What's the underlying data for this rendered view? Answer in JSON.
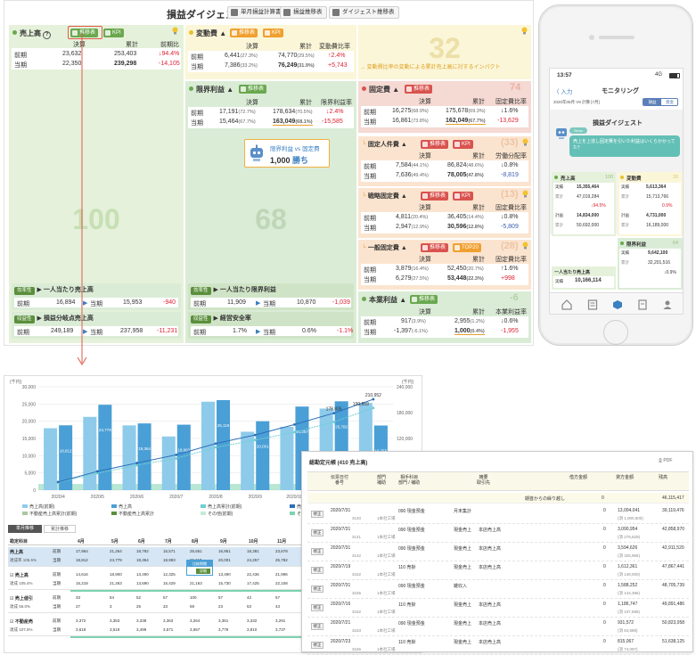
{
  "header": {
    "title": "損益ダイジェスト",
    "buttons": [
      "単月損益計算書",
      "損益推移表",
      "ダイジェスト推移表"
    ]
  },
  "sales": {
    "title": "売上高",
    "tag1": "推移表",
    "tag2": "KPI",
    "cols": [
      "決算",
      "累計",
      "前期比"
    ],
    "rows": [
      {
        "label": "前期",
        "v1": "23,632",
        "v2": "253,403",
        "v3": "94.4%"
      },
      {
        "label": "当期",
        "v1": "22,350",
        "v2": "239,298",
        "v3": "-14,105"
      }
    ],
    "big": "100",
    "kpi1": {
      "badge": "効率性",
      "title": "一人当たり売上高",
      "prev_label": "前期",
      "prev": "16,894",
      "cur_label": "当期",
      "cur": "15,953",
      "diff": "-940"
    },
    "kpi2": {
      "badge": "収益性",
      "title": "損益分岐点売上高",
      "prev_label": "前期",
      "prev": "249,189",
      "cur_label": "当期",
      "cur": "237,958",
      "diff": "-11,231"
    }
  },
  "variable": {
    "title": "変動費",
    "tag1": "推移表",
    "tag2": "KPI",
    "cols": [
      "決算",
      "累計",
      "変動費比率"
    ],
    "rows": [
      {
        "label": "前期",
        "v1": "6,441",
        "r1": "(27.3%)",
        "v2": "74,770",
        "r2": "(29.5%)",
        "v3": "2.4%"
      },
      {
        "label": "当期",
        "v1": "7,386",
        "r1": "(33.2%)",
        "v2": "76,249",
        "r2": "(31.9%)",
        "v3": "+5,743"
      }
    ],
    "big": "32",
    "note": "変動費比率の変動による累計売上高に対するインパクト"
  },
  "marginal": {
    "title": "限界利益",
    "tag1": "推移表",
    "cols": [
      "決算",
      "累計",
      "限界利益率"
    ],
    "rows": [
      {
        "label": "前期",
        "v1": "17,191",
        "r1": "(72.7%)",
        "v2": "178,634",
        "r2": "(70.5%)",
        "v3": "2.4%"
      },
      {
        "label": "当期",
        "v1": "15,464",
        "r1": "(67.7%)",
        "v2": "163,049",
        "r2": "(68.1%)",
        "v3": "-15,585"
      }
    ],
    "big": "68",
    "compare_title": "限界利益 vs 固定費",
    "compare_value": "1,000",
    "compare_unit": "勝ち",
    "kpi1": {
      "badge": "効率性",
      "title": "一人当たり限界利益",
      "prev_label": "前期",
      "prev": "11,909",
      "cur_label": "当期",
      "cur": "10,870",
      "diff": "-1,039"
    },
    "kpi2": {
      "badge": "収益性",
      "title": "経営安全率",
      "prev_label": "前期",
      "prev": "1.7%",
      "cur_label": "当期",
      "cur": "0.6%",
      "diff": "-1.1%"
    }
  },
  "fixed": {
    "title": "固定費",
    "tag1": "推移表",
    "cols": [
      "決算",
      "累計",
      "固定費比率"
    ],
    "rows": [
      {
        "label": "前期",
        "v1": "16,275",
        "r1": "(68.9%)",
        "v2": "175,678",
        "r2": "(69.3%)",
        "v3": "1.6%"
      },
      {
        "label": "当期",
        "v1": "16,861",
        "r1": "(73.8%)",
        "v2": "162,049",
        "r2": "(67.7%)",
        "v3": "-13,629"
      }
    ],
    "big": "74",
    "sub": [
      {
        "title": "固定人件費",
        "tag1": "推移表",
        "tag2": "KPI",
        "num": "(33)",
        "cols": [
          "決算",
          "累計",
          "労働分配率"
        ],
        "rows": [
          {
            "label": "前期",
            "v1": "7,584",
            "r1": "(44.1%)",
            "v2": "86,824",
            "r2": "(48.6%)",
            "v3": "0.8%"
          },
          {
            "label": "当期",
            "v1": "7,636",
            "r1": "(49.4%)",
            "v2": "78,005",
            "r2": "(47.8%)",
            "v3": "-8,819"
          }
        ]
      },
      {
        "title": "戦略固定費",
        "tag1": "推移表",
        "tag2": "KPI",
        "num": "(13)",
        "cols": [
          "決算",
          "累計",
          "固定費比率"
        ],
        "rows": [
          {
            "label": "前期",
            "v1": "4,811",
            "r1": "(20.4%)",
            "v2": "36,405",
            "r2": "(14.4%)",
            "v3": "0.8%"
          },
          {
            "label": "当期",
            "v1": "2,947",
            "r1": "(12.9%)",
            "v2": "30,596",
            "r2": "(12.8%)",
            "v3": "-5,809"
          }
        ]
      },
      {
        "title": "一般固定費",
        "tag1": "推移表",
        "tag2": "TOP20",
        "num": "(28)",
        "cols": [
          "決算",
          "累計",
          "固定費比率"
        ],
        "rows": [
          {
            "label": "前期",
            "v1": "3,879",
            "r1": "(16.4%)",
            "v2": "52,450",
            "r2": "(20.7%)",
            "v3": "1.6%"
          },
          {
            "label": "当期",
            "v1": "6,279",
            "r1": "(27.5%)",
            "v2": "53,448",
            "r2": "(22.3%)",
            "v3": "+998"
          }
        ]
      }
    ]
  },
  "operating": {
    "title": "本業利益",
    "tag1": "推移表",
    "num": "-6",
    "cols": [
      "決算",
      "累計",
      "本業利益率"
    ],
    "rows": [
      {
        "label": "前期",
        "v1": "917",
        "r1": "(3.9%)",
        "v2": "2,955",
        "r2": "(1.2%)",
        "v3": "0.6%"
      },
      {
        "label": "当期",
        "v1": "-1,397",
        "r1": "(-6.1%)",
        "v2": "1,000",
        "r2": "(0.4%)",
        "v3": "-1,955"
      }
    ]
  },
  "phone": {
    "time": "13:57",
    "signal": "4G",
    "back": "入力",
    "title": "モニタリング",
    "period": "2020年06月 V9 計算 [7月]",
    "seg1": "損益",
    "seg2": "資金",
    "screen_title": "損益ダイジェスト",
    "bot_label": "Sirius",
    "bubble": "売上を上達し固定費を引いた利益はいくらかかってた？",
    "sales": {
      "title": "売上高",
      "num": "100",
      "rows": [
        {
          "l": "実績",
          "v": "15,355,464"
        },
        {
          "l": "累計",
          "v": "47,019,284"
        },
        {
          "l": "",
          "v": "94.5%"
        },
        {
          "l": "計画",
          "v": "14,834,000"
        },
        {
          "l": "累計",
          "v": "50,692,000"
        }
      ]
    },
    "variable": {
      "title": "変動費",
      "num": "30",
      "rows": [
        {
          "l": "実績",
          "v": "5,613,364"
        },
        {
          "l": "累計",
          "v": "15,713,766"
        },
        {
          "l": "",
          "v": "0.9%"
        },
        {
          "l": "計画",
          "v": "4,731,000"
        },
        {
          "l": "累計",
          "v": "16,189,000"
        }
      ]
    },
    "marginal": {
      "title": "限界利益",
      "num": "64",
      "rows": [
        {
          "l": "実績",
          "v": "9,642,100"
        },
        {
          "l": "累計",
          "v": "32,201,516"
        },
        {
          "l": "",
          "v": "0.9%"
        }
      ]
    },
    "kpi": {
      "title": "一人当たり売上高",
      "l": "実績",
      "v": "10,166,114"
    }
  },
  "chart": {
    "unit_left": "(千円)",
    "unit_right": "(千円)",
    "y_left_ticks": [
      "30,000",
      "25,000",
      "20,000",
      "15,000",
      "10,000",
      "5,000",
      "0"
    ],
    "y_right_ticks": [
      "240,000",
      "180,000",
      "120,000",
      "60,000",
      "0"
    ],
    "legend": [
      "売上高(前期)",
      "売上高",
      "売上高累計(前期)",
      "売上高累計",
      "不動産売上高累計(前期)",
      "不動産売上高累計",
      "その他(前期)",
      "その他"
    ],
    "tab1": "単月推移",
    "tab2": "累計推移",
    "top_labels": [
      "210,952",
      "190,859",
      "178,835"
    ]
  },
  "chart_data": {
    "type": "bar",
    "categories": [
      "2020/4",
      "2020/5",
      "2020/6",
      "2020/7",
      "2020/8",
      "2020/9",
      "2020/10",
      "2020/11",
      "2020/12"
    ],
    "series": [
      {
        "name": "売上高(前期)",
        "values": [
          17964,
          21264,
          18792,
          15571,
          25661,
          16951,
          18381,
          23678,
          25294
        ]
      },
      {
        "name": "売上高",
        "values": [
          18812,
          24779,
          19364,
          18993,
          26119,
          20001,
          24257,
          25782,
          18755
        ]
      }
    ],
    "cumulative": [
      18812,
      43591,
      62955,
      81948,
      108067,
      128068,
      152325,
      178835,
      210952
    ],
    "cumulative_prev": [
      17964,
      39228,
      58020,
      73591,
      99252,
      116203,
      134584,
      158262,
      190859
    ],
    "ylim": [
      0,
      30000
    ],
    "y2lim": [
      0,
      240000
    ]
  },
  "table": {
    "header": [
      "勘定科目",
      "4月",
      "5月",
      "6月",
      "7月",
      "8月",
      "9月",
      "10月",
      "11月",
      "12月"
    ],
    "groups": [
      {
        "name": "売上高",
        "sub": "達成率 105.5%",
        "rows": [
          {
            "l": "前期",
            "v": [
              "17,964",
              "21,264",
              "18,792",
              "15,571",
              "25,661",
              "16,951",
              "18,381",
              "23,678",
              "25,294"
            ]
          },
          {
            "l": "当期",
            "v": [
              "18,812",
              "24,779",
              "19,364",
              "18,993",
              "26,119",
              "20,001",
              "24,257",
              "25,782",
              "18,755"
            ]
          }
        ]
      },
      {
        "name": "売上高",
        "sub": "達成 105.4%",
        "rows": [
          {
            "l": "前期",
            "v": [
              "14,616",
              "18,900",
              "13,490",
              "12,325",
              "22,451",
              "13,490",
              "22,436",
              "21,996",
              "14,750"
            ]
          },
          {
            "l": "当期",
            "v": [
              "15,218",
              "21,263",
              "13,690",
              "15,429",
              "21,163",
              "15,730",
              "17,425",
              "22,108",
              "12,480"
            ]
          }
        ]
      },
      {
        "name": "売上値引",
        "sub": "達成 56.0%",
        "rows": [
          {
            "l": "前期",
            "v": [
              "33",
              "54",
              "52",
              "57",
              "100",
              "57",
              "42",
              "57",
              "76"
            ]
          },
          {
            "l": "当期",
            "v": [
              "27",
              "3",
              "25",
              "33",
              "59",
              "23",
              "53",
              "43",
              "27"
            ]
          }
        ]
      },
      {
        "name": "不動産売",
        "sub": "達成 107.5%",
        "rows": [
          {
            "l": "前期",
            "v": [
              "3,372",
              "3,353",
              "3,338",
              "3,363",
              "3,264",
              "3,361",
              "3,332",
              "3,291",
              "3,375"
            ]
          },
          {
            "l": "当期",
            "v": [
              "3,618",
              "3,519",
              "3,499",
              "3,571",
              "3,657",
              "3,778",
              "3,810",
              "3,737",
              "3,548"
            ]
          }
        ]
      }
    ],
    "popup_title": "比較期間",
    "popup_btn": "詳細"
  },
  "ledger": {
    "title": "総勘定元帳 (410 売上高)",
    "pdf": "PDF",
    "cols": [
      "伝票日付\n番号",
      "部門\n補助",
      "相手科目\n部門 / 補助",
      "摘要\n取引先",
      "借方金額",
      "貸方金額",
      "残高"
    ],
    "carry_label": "期首からの繰り越し",
    "carry_debit": "0",
    "carry_balance": "46,115,417",
    "edit_label": "修正",
    "rows": [
      {
        "date": "2020/7/31",
        "no": "3140",
        "dept": "",
        "sub": "1本社工場",
        "acct": "090 現金預金",
        "acct2": "",
        "memo": "月末集計",
        "memo2": "",
        "debit": "0",
        "credit": "13,004,041",
        "credit2": "(消 1,000,500)",
        "bal": "39,119,476"
      },
      {
        "date": "2020/7/31",
        "no": "3141",
        "dept": "",
        "sub": "1本社工場",
        "acct": "090 現金預金",
        "acct2": "",
        "memo": "現金売上",
        "memo2": "本店売上高",
        "debit": "0",
        "credit": "3,090,954",
        "credit2": "(消 275,629)",
        "bal": "42,858,970"
      },
      {
        "date": "2020/7/31",
        "no": "3142",
        "dept": "",
        "sub": "1本社工場",
        "acct": "090 現金預金",
        "acct2": "",
        "memo": "現金売上",
        "memo2": "本店売上高",
        "debit": "0",
        "credit": "3,594,626",
        "credit2": "(消 325,966)",
        "bal": "42,911,520"
      },
      {
        "date": "2020/7/19",
        "no": "3152",
        "dept": "",
        "sub": "1本社工場",
        "acct": "110 売掛",
        "acct2": "",
        "memo": "現金売上",
        "memo2": "本店売上高",
        "debit": "0",
        "credit": "1,612,361",
        "credit2": "(消 148,000)",
        "bal": "47,867,441"
      },
      {
        "date": "2020/7/31",
        "no": "3155",
        "dept": "",
        "sub": "1本社工場",
        "acct": "090 現金預金",
        "acct2": "",
        "memo": "雑収入",
        "memo2": "",
        "debit": "0",
        "credit": "1,588,252",
        "credit2": "(消 144,386)",
        "bal": "48,705,739"
      },
      {
        "date": "2020/7/16",
        "no": "3162",
        "dept": "",
        "sub": "1本社工場",
        "acct": "110 売掛",
        "acct2": "",
        "memo": "現金売上",
        "memo2": "本店売上高",
        "debit": "0",
        "credit": "1,186,747",
        "credit2": "(消 107,886)",
        "bal": "49,891,486"
      },
      {
        "date": "2020/7/21",
        "no": "3163",
        "dept": "",
        "sub": "1本社工場",
        "acct": "090 現金預金",
        "acct2": "",
        "memo": "現金売上",
        "memo2": "本店売上高",
        "debit": "0",
        "credit": "931,572",
        "credit2": "(消 84,688)",
        "bal": "50,823,058"
      },
      {
        "date": "2020/7/23",
        "no": "3166",
        "dept": "",
        "sub": "1本社工場",
        "acct": "110 売掛",
        "acct2": "",
        "memo": "現金売上",
        "memo2": "本店売上高",
        "debit": "0",
        "credit": "815,067",
        "credit2": "(消 74,097)",
        "bal": "51,638,125"
      }
    ]
  },
  "colors": {
    "green": "#e5f1da",
    "red": "#d9534f",
    "orange": "#f0a030",
    "yellow": "#fbf6d8",
    "bar_prev": "#8ecbea",
    "bar_cur": "#4a9fd6",
    "line_cum": "#2b6fb8",
    "line_prev": "#6fcfd0",
    "neg": "#dd2233",
    "band": "#7dd3b0"
  }
}
